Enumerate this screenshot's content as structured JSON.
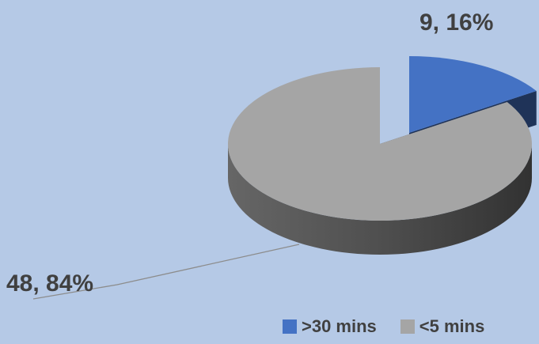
{
  "chart_data": {
    "type": "pie",
    "style": "3d-exploded",
    "title": "",
    "slices": [
      {
        "name": ">30 mins",
        "value": 9,
        "percent": 16,
        "label": "9, 16%",
        "color": "#4472c4"
      },
      {
        "name": "<5 mins",
        "value": 48,
        "percent": 84,
        "label": "48, 84%",
        "color": "#a5a5a5"
      }
    ],
    "legend": {
      "position": "bottom-right",
      "entries": [
        ">30 mins",
        "<5 mins"
      ]
    },
    "background": "#b5c9e6"
  }
}
